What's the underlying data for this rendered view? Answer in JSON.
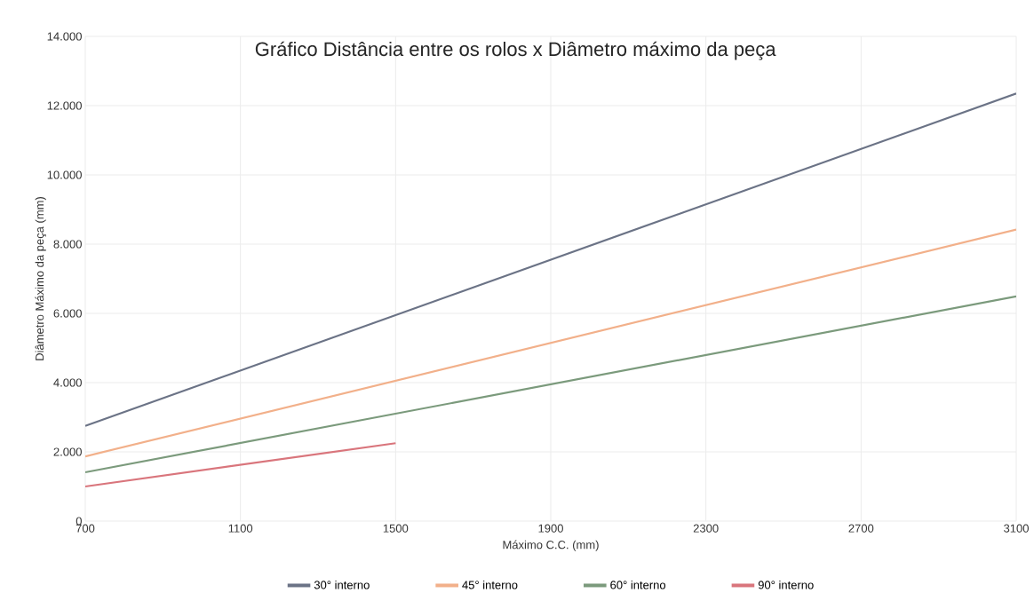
{
  "chart_data": {
    "type": "line",
    "title": "Gráfico Distância entre os rolos x Diâmetro máximo da peça",
    "xlabel": "Máximo C.C. (mm)",
    "ylabel": "Diâmetro Máximo da peça (mm)",
    "xlim": [
      700,
      3100
    ],
    "xticks": [
      700,
      1100,
      1500,
      1900,
      2300,
      2700,
      3100
    ],
    "ylim": [
      0,
      14000
    ],
    "yticks": [
      0,
      {
        "value": 2000,
        "label": "2.000"
      },
      {
        "value": 4000,
        "label": "4.000"
      },
      {
        "value": 6000,
        "label": "6.000"
      },
      {
        "value": 8000,
        "label": "8.000"
      },
      {
        "value": 10000,
        "label": "10.000"
      },
      {
        "value": 12000,
        "label": "12.000"
      },
      {
        "value": 14000,
        "label": "14.000"
      }
    ],
    "grid": true,
    "legend": "bottom",
    "marker": "none",
    "line_style": "solid",
    "series": [
      {
        "name": "30° interno",
        "color": "#6b7386",
        "x": [
          700,
          3100
        ],
        "values": [
          2750,
          12350
        ]
      },
      {
        "name": "45° interno",
        "color": "#f2b08a",
        "x": [
          700,
          3100
        ],
        "values": [
          1870,
          8420
        ]
      },
      {
        "name": "60° interno",
        "color": "#7b9a7c",
        "x": [
          700,
          3100
        ],
        "values": [
          1410,
          6490
        ]
      },
      {
        "name": "90° interno",
        "color": "#d9757c",
        "x": [
          700,
          1500
        ],
        "values": [
          1000,
          2250
        ]
      }
    ]
  }
}
